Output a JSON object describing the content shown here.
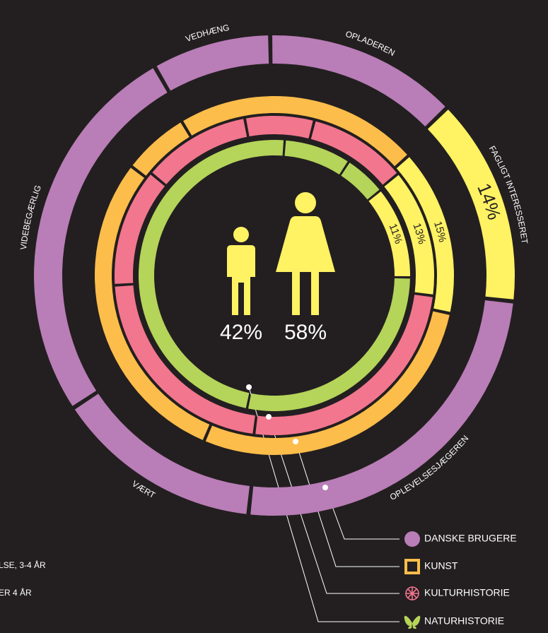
{
  "chart_data": {
    "type": "donut",
    "rings": [
      {
        "name": "DANSKE BRUGERE",
        "categories": [
          "OPLADEREN",
          "FAGLIGT INTERESSERET",
          "OPLEVELSESJÆGEREN",
          "VÆRT",
          "VIDEBEGÆRLIG",
          "VEDHÆNG"
        ],
        "values": [
          13,
          14,
          25,
          14,
          26,
          8
        ],
        "value_labels": [
          null,
          "14%",
          null,
          null,
          null,
          null
        ],
        "colors": [
          "#b97db7",
          "#fff263",
          "#b97db7",
          "#b97db7",
          "#b97db7",
          "#b97db7"
        ]
      },
      {
        "name": "KUNST",
        "values": [
          22,
          15,
          28,
          29,
          6
        ],
        "value_labels": [
          null,
          "15%",
          null,
          null,
          null
        ],
        "colors": [
          "#fdbd4a",
          "#fff263",
          "#fdbd4a",
          "#fdbd4a",
          "#fdbd4a"
        ]
      },
      {
        "name": "KULTURHISTORIE",
        "values": [
          7,
          10,
          13,
          25,
          22,
          12,
          11
        ],
        "value_labels": [
          null,
          null,
          "13%",
          null,
          null,
          null,
          null
        ],
        "colors": [
          "#f2768e",
          "#f2768e",
          "#fff263",
          "#f2768e",
          "#f2768e",
          "#f2768e",
          "#f2768e"
        ]
      },
      {
        "name": "NATURHISTORIE",
        "values": [
          8,
          5,
          11,
          28,
          48
        ],
        "value_labels": [
          null,
          null,
          "11%",
          null,
          null
        ],
        "colors": [
          "#b5d45a",
          "#b5d45a",
          "#fff263",
          "#b5d45a",
          "#b5d45a"
        ]
      }
    ],
    "figures": {
      "values": [
        42,
        58
      ],
      "value_labels": [
        "42%",
        "58%"
      ],
      "color": "#fff263"
    }
  },
  "page_text": [
    "LSE, 3-4 ÅR",
    "ER 4 ÅR"
  ]
}
